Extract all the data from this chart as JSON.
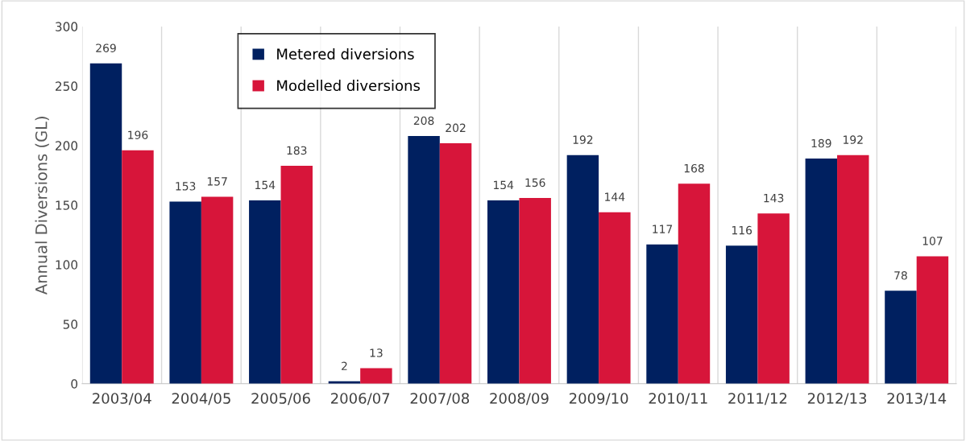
{
  "chart_data": {
    "type": "bar",
    "ylabel": "Annual Diversions (GL)",
    "categories": [
      "2003/04",
      "2004/05",
      "2005/06",
      "2006/07",
      "2007/08",
      "2008/09",
      "2009/10",
      "2010/11",
      "2011/12",
      "2012/13",
      "2013/14"
    ],
    "series": [
      {
        "name": "Metered diversions",
        "color": "#002060",
        "values": [
          269,
          153,
          154,
          2,
          208,
          154,
          192,
          117,
          116,
          189,
          78
        ]
      },
      {
        "name": "Modelled diversions",
        "color": "#d7153a",
        "values": [
          196,
          157,
          183,
          13,
          202,
          156,
          144,
          168,
          143,
          192,
          107
        ]
      }
    ],
    "ylim": [
      0,
      300
    ],
    "yticks": [
      0,
      50,
      100,
      150,
      200,
      250,
      300
    ],
    "grid": "x",
    "legend": "top left",
    "data_labels": true
  }
}
